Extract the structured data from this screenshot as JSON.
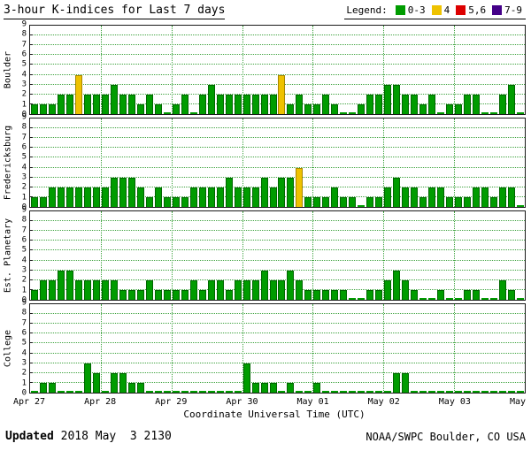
{
  "title": "3-hour K-indices for Last 7 days",
  "legend": {
    "label": "Legend:",
    "items": [
      {
        "label": "0-3",
        "color": "#009c00"
      },
      {
        "label": "4",
        "color": "#eec200"
      },
      {
        "label": "5,6",
        "color": "#dd0000"
      },
      {
        "label": "7-9",
        "color": "#440088"
      }
    ]
  },
  "xlabel": "Coordinate Universal Time (UTC)",
  "footer": {
    "updated_label": "Updated",
    "updated_value": " 2018 May  3 2130",
    "credit": "NOAA/SWPC Boulder, CO USA"
  },
  "chart_data": {
    "type": "bar",
    "title": "3-hour K-indices for Last 7 days",
    "ylim": [
      0,
      9
    ],
    "y_ticks": [
      0,
      1,
      2,
      3,
      4,
      5,
      6,
      7,
      8,
      9
    ],
    "x_ticks": [
      "Apr 27",
      "Apr 28",
      "Apr 29",
      "Apr 30",
      "May 01",
      "May 02",
      "May 03",
      "May 04"
    ],
    "bars_per_day": 8,
    "days": 7,
    "colors": {
      "green": "#009c00",
      "green_border": "#006600",
      "yellow": "#eec200",
      "yellow_border": "#a88500",
      "red": "#dd0000",
      "red_border": "#880000",
      "purple": "#440088",
      "purple_border": "#220044"
    },
    "series": [
      {
        "name": "Boulder",
        "values": [
          1,
          1,
          1,
          2,
          2,
          4,
          2,
          2,
          2,
          3,
          2,
          2,
          1,
          2,
          1,
          0,
          1,
          2,
          0,
          2,
          3,
          2,
          2,
          2,
          2,
          2,
          2,
          2,
          4,
          1,
          2,
          1,
          1,
          2,
          1,
          0,
          0,
          1,
          2,
          2,
          3,
          3,
          2,
          2,
          1,
          2,
          0,
          1,
          1,
          2,
          2,
          0,
          0,
          2,
          3,
          0
        ]
      },
      {
        "name": "Fredericksburg",
        "values": [
          1,
          1,
          2,
          2,
          2,
          2,
          2,
          2,
          2,
          3,
          3,
          3,
          2,
          1,
          2,
          1,
          1,
          1,
          2,
          2,
          2,
          2,
          3,
          2,
          2,
          2,
          3,
          2,
          3,
          3,
          4,
          1,
          1,
          1,
          2,
          1,
          1,
          0,
          1,
          1,
          2,
          3,
          2,
          2,
          1,
          2,
          2,
          1,
          1,
          1,
          2,
          2,
          1,
          2,
          2,
          0
        ]
      },
      {
        "name": "Est. Planetary",
        "values": [
          1,
          2,
          2,
          3,
          3,
          2,
          2,
          2,
          2,
          2,
          1,
          1,
          1,
          2,
          1,
          1,
          1,
          1,
          2,
          1,
          2,
          2,
          1,
          2,
          2,
          2,
          3,
          2,
          2,
          3,
          2,
          1,
          1,
          1,
          1,
          1,
          0,
          0,
          1,
          1,
          2,
          3,
          2,
          1,
          0,
          0,
          1,
          0,
          0,
          1,
          1,
          0,
          0,
          2,
          1,
          0
        ]
      },
      {
        "name": "College",
        "values": [
          0,
          1,
          1,
          0,
          0,
          0,
          3,
          2,
          0,
          2,
          2,
          1,
          1,
          0,
          0,
          0,
          0,
          0,
          0,
          0,
          0,
          0,
          0,
          0,
          3,
          1,
          1,
          1,
          0,
          1,
          0,
          0,
          1,
          0,
          0,
          0,
          0,
          0,
          0,
          0,
          0,
          2,
          2,
          0,
          0,
          0,
          0,
          0,
          0,
          0,
          0,
          0,
          0,
          0,
          0,
          0
        ]
      }
    ]
  }
}
